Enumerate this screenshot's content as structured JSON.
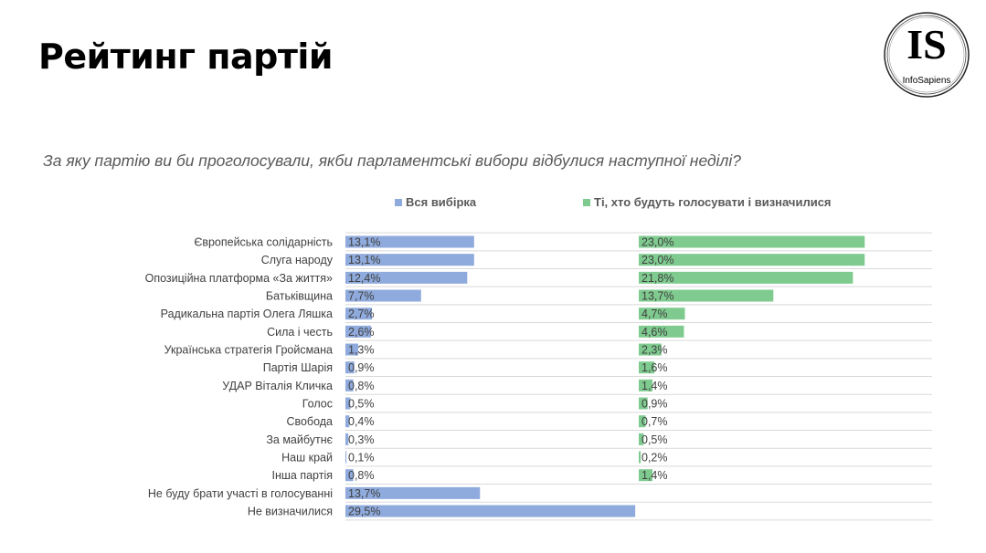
{
  "title": "Рейтинг партій",
  "question": "За яку партію ви би проголосували, якби парламентські вибори відбулися наступної неділі?",
  "logo": {
    "text": "IS",
    "subtext": "InfoSapiens"
  },
  "chart_data": {
    "type": "bar",
    "orientation": "horizontal",
    "legend_position": "top",
    "grid": true,
    "categories": [
      "Європейська солідарність",
      "Слуга народу",
      "Опозиційна платформа «За життя»",
      "Батьківщина",
      "Радикальна партія Олега Ляшка",
      "Сила і честь",
      "Українська стратегія Гройсмана",
      "Партія Шарія",
      "УДАР Віталія Кличка",
      "Голос",
      "Свобода",
      "За майбутнє",
      "Наш край",
      "Інша партія",
      "Не буду брати участі в голосуванні",
      "Не визначилися"
    ],
    "series": [
      {
        "name": "Вся вибірка",
        "color": "#8faadc",
        "values": [
          13.1,
          13.1,
          12.4,
          7.7,
          2.7,
          2.6,
          1.3,
          0.9,
          0.8,
          0.5,
          0.4,
          0.3,
          0.1,
          0.8,
          13.7,
          29.5
        ],
        "labels": [
          "13,1%",
          "13,1%",
          "12,4%",
          "7,7%",
          "2,7%",
          "2,6%",
          "1,3%",
          "0,9%",
          "0,8%",
          "0,5%",
          "0,4%",
          "0,3%",
          "0,1%",
          "0,8%",
          "13,7%",
          "29,5%"
        ]
      },
      {
        "name": "Ті, хто будуть голосувати і визначилися",
        "color": "#7fcb8f",
        "values": [
          23.0,
          23.0,
          21.8,
          13.7,
          4.7,
          4.6,
          2.3,
          1.6,
          1.4,
          0.9,
          0.7,
          0.5,
          0.2,
          1.4,
          null,
          null
        ],
        "labels": [
          "23,0%",
          "23,0%",
          "21,8%",
          "13,7%",
          "4,7%",
          "4,6%",
          "2,3%",
          "1,6%",
          "1,4%",
          "0,9%",
          "0,7%",
          "0,5%",
          "0,2%",
          "1,4%",
          "",
          ""
        ]
      }
    ]
  }
}
